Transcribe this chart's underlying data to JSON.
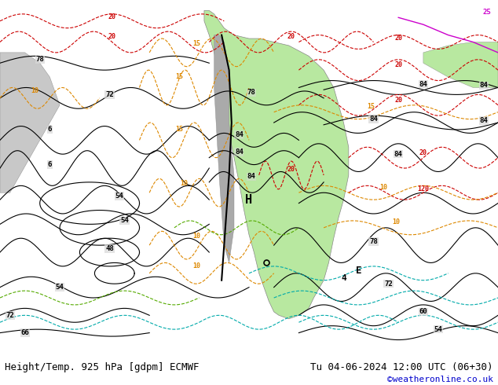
{
  "title_left": "Height/Temp. 925 hPa [gdpm] ECMWF",
  "title_right": "Tu 04-06-2024 12:00 UTC (06+30)",
  "watermark": "©weatheronline.co.uk",
  "bg_color": "#d8d8d8",
  "land_color": "#c8c8c8",
  "sa_color": "#b8e8a0",
  "ocean_color": "#d8d8d8",
  "text_color_black": "#000000",
  "text_color_red": "#cc0000",
  "text_color_orange": "#dd8800",
  "text_color_cyan": "#00aaaa",
  "text_color_green": "#55aa00",
  "text_color_magenta": "#cc00cc",
  "text_color_blue": "#0000cc",
  "bottom_bar_color": "#ffffff",
  "bottom_bar_height": 0.09,
  "fig_width": 6.34,
  "fig_height": 4.9,
  "dpi": 100,
  "title_fontsize": 9,
  "watermark_fontsize": 8,
  "watermark_color": "#0000cc"
}
